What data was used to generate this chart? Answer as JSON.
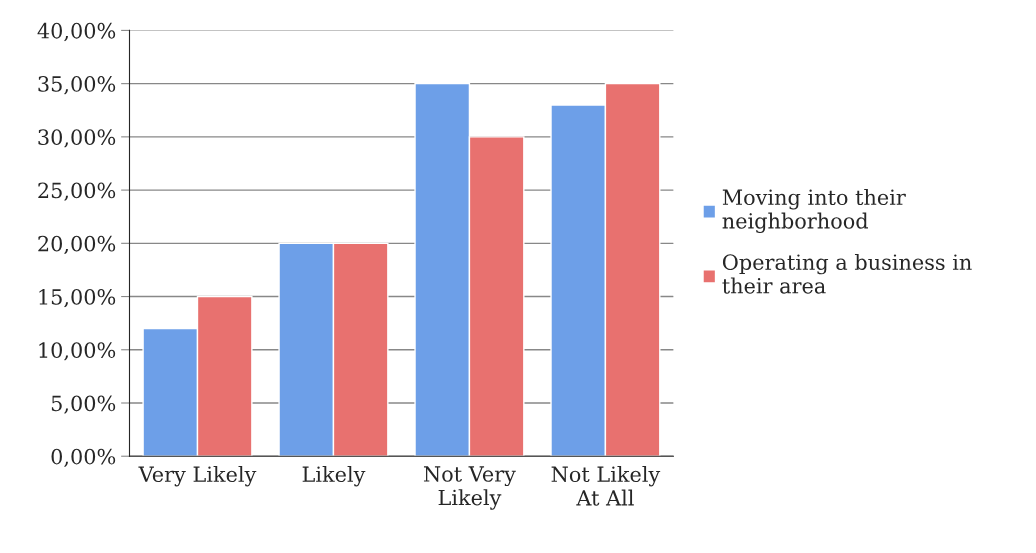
{
  "chart_data": {
    "type": "bar",
    "categories": [
      "Very Likely",
      "Likely",
      "Not Very\nLikely",
      "Not Likely\nAt All"
    ],
    "series": [
      {
        "name": "Moving into their\nneighborhood",
        "color": "#6d9fe8",
        "values": [
          12,
          20,
          35,
          33
        ]
      },
      {
        "name": "Operating a business in\ntheir area",
        "color": "#e8716f",
        "values": [
          15,
          20,
          30,
          35
        ]
      }
    ],
    "ylim": [
      0,
      40
    ],
    "yticks": [
      {
        "value": 0,
        "label": "0,00%"
      },
      {
        "value": 5,
        "label": "5,00%"
      },
      {
        "value": 10,
        "label": "10,00%"
      },
      {
        "value": 15,
        "label": "15,00%"
      },
      {
        "value": 20,
        "label": "20,00%"
      },
      {
        "value": 25,
        "label": "25,00%"
      },
      {
        "value": 30,
        "label": "30,00%"
      },
      {
        "value": 35,
        "label": "35,00%"
      },
      {
        "value": 40,
        "label": "40,00%"
      }
    ],
    "grid": "y",
    "legend": "right"
  }
}
